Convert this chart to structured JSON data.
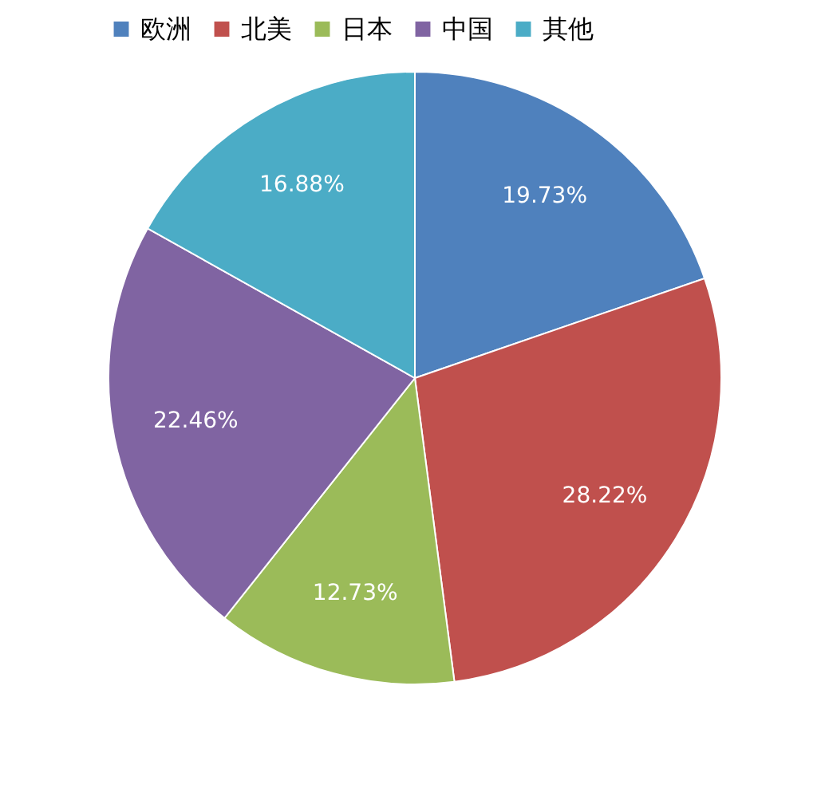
{
  "chart_data": {
    "type": "pie",
    "categories": [
      "欧洲",
      "北美",
      "日本",
      "中国",
      "其他"
    ],
    "values": [
      19.73,
      28.22,
      12.73,
      22.46,
      16.88
    ],
    "colors": [
      "#4f81bd",
      "#c0504d",
      "#9bbb59",
      "#8064a2",
      "#4bacc6"
    ],
    "value_labels": [
      "19.73%",
      "28.22%",
      "12.73%",
      "22.46%",
      "16.88%"
    ],
    "legend": "top"
  }
}
